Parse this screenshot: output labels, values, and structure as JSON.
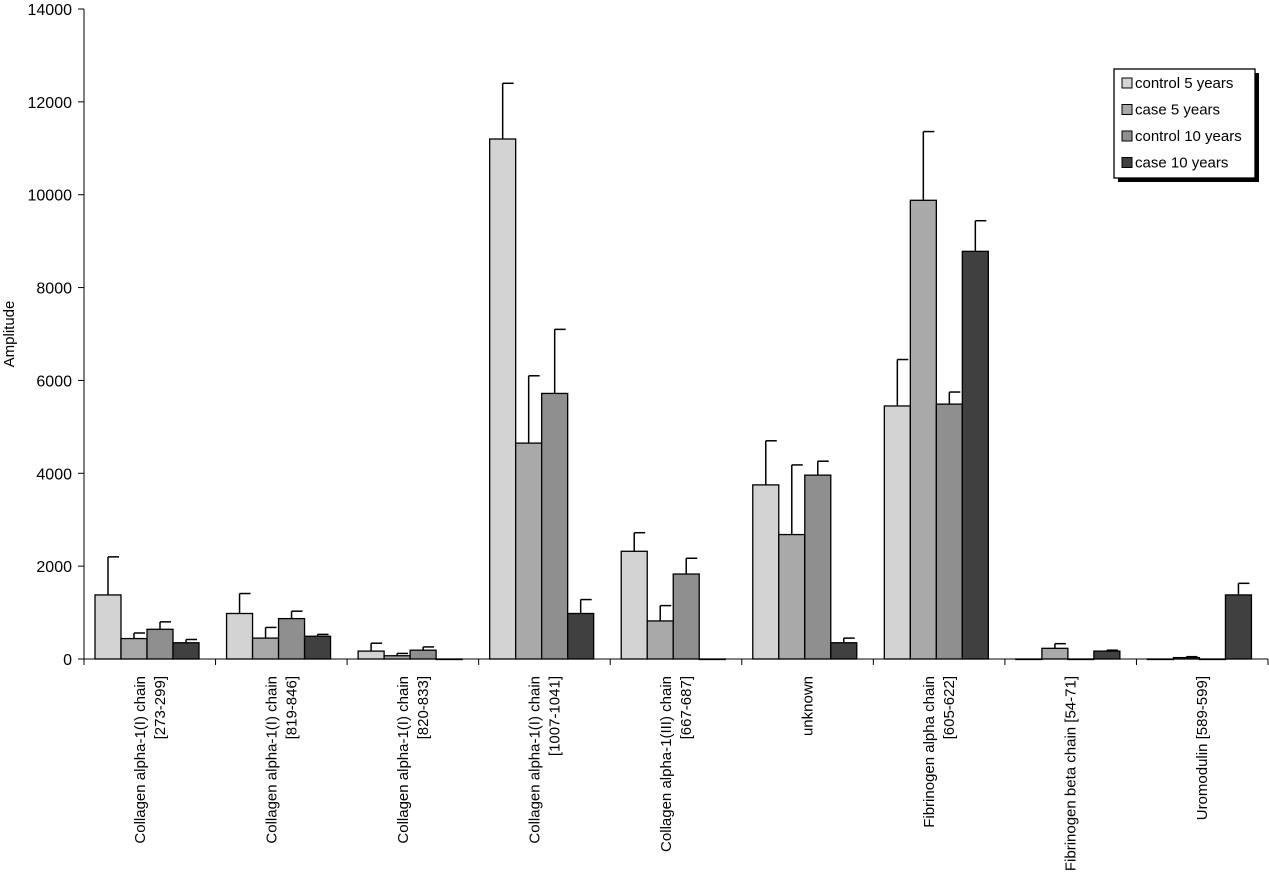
{
  "chart_data": {
    "type": "bar",
    "title": "",
    "xlabel": "",
    "ylabel": "Amplitude",
    "ylim": [
      0,
      14000
    ],
    "yticks": [
      "0",
      "2000",
      "4000",
      "6000",
      "8000",
      "10000",
      "12000",
      "14000"
    ],
    "grid": false,
    "legend_position": "top-right",
    "categories": [
      [
        "Collagen alpha-1(I) chain",
        "[273-299]"
      ],
      [
        "Collagen alpha-1(I) chain",
        "[819-846]"
      ],
      [
        "Collagen alpha-1(I) chain",
        "[820-833]"
      ],
      [
        "Collagen alpha-1(I) chain",
        "[1007-1041]"
      ],
      [
        "Collagen alpha-1(III) chain",
        "[667-687]"
      ],
      [
        "unknown"
      ],
      [
        "Fibrinogen alpha chain",
        "[605-622]"
      ],
      [
        "Fibrinogen beta chain [54-71]"
      ],
      [
        "Uromodulin [589-599]"
      ]
    ],
    "series": [
      {
        "name": "control 5 years",
        "color": "#d3d3d3",
        "values": [
          1380,
          980,
          170,
          11200,
          2320,
          3750,
          5450,
          0,
          0
        ],
        "errors": [
          820,
          430,
          170,
          1200,
          400,
          950,
          1000,
          0,
          0
        ]
      },
      {
        "name": "case 5 years",
        "color": "#a9a9a9",
        "values": [
          440,
          450,
          70,
          4650,
          820,
          2680,
          9880,
          230,
          30
        ],
        "errors": [
          120,
          230,
          50,
          1450,
          330,
          1500,
          1480,
          100,
          20
        ]
      },
      {
        "name": "control 10 years",
        "color": "#8f8f8f",
        "values": [
          640,
          870,
          190,
          5720,
          1830,
          3960,
          5490,
          0,
          0
        ],
        "errors": [
          160,
          160,
          70,
          1380,
          340,
          300,
          260,
          0,
          0
        ]
      },
      {
        "name": "case 10 years",
        "color": "#404040",
        "values": [
          350,
          490,
          0,
          980,
          0,
          350,
          8780,
          170,
          1380
        ],
        "errors": [
          70,
          40,
          0,
          300,
          0,
          100,
          660,
          20,
          250
        ]
      }
    ]
  }
}
